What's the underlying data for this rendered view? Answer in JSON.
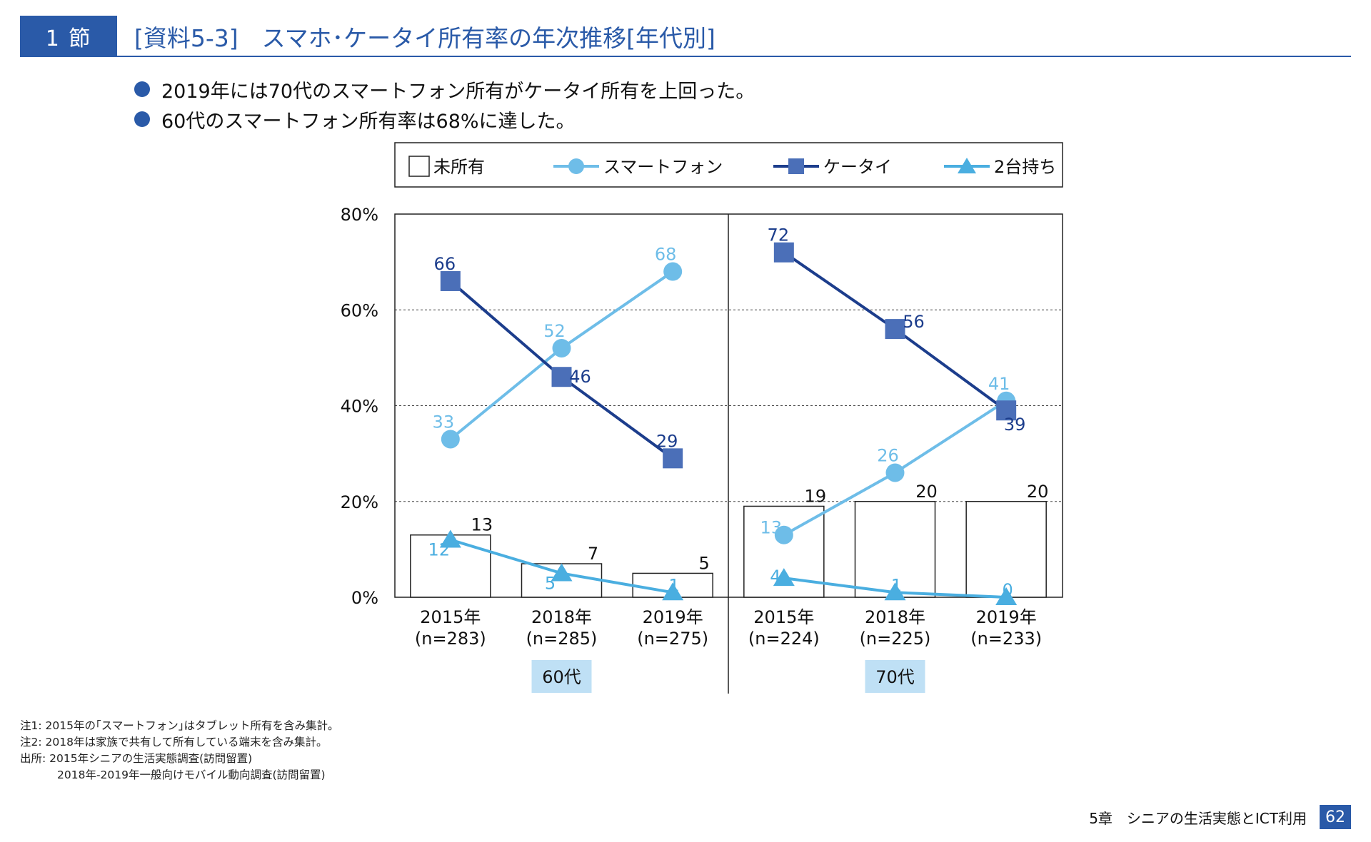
{
  "header": {
    "section_label": "1 節",
    "title": "[資料5-3]　スマホ･ケータイ所有率の年次推移[年代別]"
  },
  "bullets": [
    "2019年には70代のスマートフォン所有がケータイ所有を上回った。",
    "60代のスマートフォン所有率は68%に達した。"
  ],
  "colors": {
    "accent": "#2a5aa8",
    "smartphone": "#6ebde8",
    "keitai": "#1c3d8c",
    "keitai_marker": "#4b6fb8",
    "two_devices": "#4aaee0",
    "group_label_bg": "#bfe0f5"
  },
  "chart_data": {
    "type": "bar",
    "title": "",
    "ylabel": "",
    "xlabel": "",
    "ylim": [
      0,
      80
    ],
    "yticks": [
      "0%",
      "20%",
      "40%",
      "60%",
      "80%"
    ],
    "grid": "dashed horizontal",
    "legend_position": "top",
    "groups": [
      {
        "name": "60代",
        "categories": [
          "2015年\n(n=283)",
          "2018年\n(n=285)",
          "2019年\n(n=275)"
        ],
        "series": [
          {
            "name": "未所有",
            "type": "bar",
            "values": [
              13,
              7,
              5
            ]
          },
          {
            "name": "スマートフォン",
            "type": "line",
            "marker": "circle",
            "values": [
              33,
              52,
              68
            ]
          },
          {
            "name": "ケータイ",
            "type": "line",
            "marker": "square",
            "values": [
              66,
              46,
              29
            ]
          },
          {
            "name": "2台持ち",
            "type": "line",
            "marker": "triangle",
            "values": [
              12,
              5,
              1
            ]
          }
        ]
      },
      {
        "name": "70代",
        "categories": [
          "2015年\n(n=224)",
          "2018年\n(n=225)",
          "2019年\n(n=233)"
        ],
        "series": [
          {
            "name": "未所有",
            "type": "bar",
            "values": [
              19,
              20,
              20
            ]
          },
          {
            "name": "スマートフォン",
            "type": "line",
            "marker": "circle",
            "values": [
              13,
              26,
              41
            ]
          },
          {
            "name": "ケータイ",
            "type": "line",
            "marker": "square",
            "values": [
              72,
              56,
              39
            ]
          },
          {
            "name": "2台持ち",
            "type": "line",
            "marker": "triangle",
            "values": [
              4,
              1,
              0
            ]
          }
        ]
      }
    ]
  },
  "notes": [
    "注1: 2015年の｢スマートフォン｣はタブレット所有を含み集計。",
    "注2: 2018年は家族で共有して所有している端末を含み集計。",
    "出所: 2015年シニアの生活実態調査(訪問留置)",
    "2018年-2019年一般向けモバイル動向調査(訪問留置)"
  ],
  "footer": {
    "chapter": "5章　シニアの生活実態とICT利用",
    "page": "62"
  }
}
